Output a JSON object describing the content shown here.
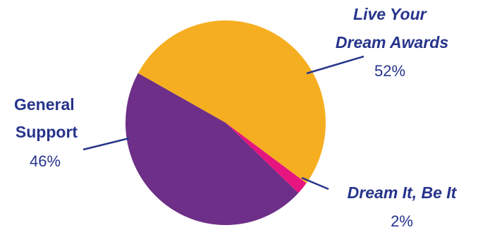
{
  "chart_data": {
    "type": "pie",
    "title": "",
    "legend": "none",
    "colors": {
      "label_text": "#27348b",
      "leader_line": "#27348b"
    },
    "slices": [
      {
        "label_lines": [
          "Live Your",
          "Dream Awards"
        ],
        "italic": true,
        "value": 52,
        "value_label": "52%",
        "color": "#f6ae21"
      },
      {
        "label_lines": [
          "Dream It, Be It"
        ],
        "italic": true,
        "value": 2,
        "value_label": "2%",
        "color": "#e6157f"
      },
      {
        "label_lines": [
          "General",
          "Support"
        ],
        "italic": false,
        "value": 46,
        "value_label": "46%",
        "color": "#6d2f87"
      }
    ]
  }
}
